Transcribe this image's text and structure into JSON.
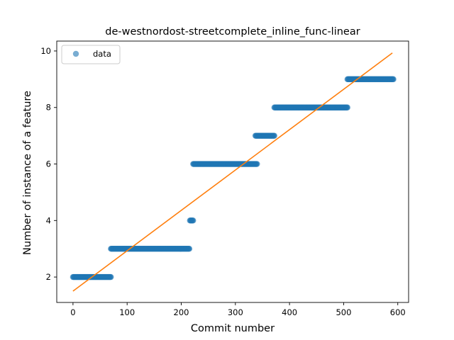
{
  "chart_data": {
    "type": "scatter",
    "title": "de-westnordost-streetcomplete_inline_func-linear",
    "xlabel": "Commit number",
    "ylabel": "Number of instance of a feature",
    "xlim": [
      -30,
      620
    ],
    "ylim": [
      1.1,
      10.35
    ],
    "xticks": [
      0,
      100,
      200,
      300,
      400,
      500,
      600
    ],
    "yticks": [
      2,
      4,
      6,
      8,
      10
    ],
    "legend": {
      "position": "top-left",
      "entries": [
        "data"
      ]
    },
    "grid": false,
    "series": [
      {
        "name": "data",
        "kind": "points",
        "color": "#1f77b4",
        "segments": [
          {
            "x_start": 0,
            "x_end": 70,
            "y": 2
          },
          {
            "x_start": 70,
            "x_end": 215,
            "y": 3
          },
          {
            "x_start": 216,
            "x_end": 222,
            "y": 4
          },
          {
            "x_start": 222,
            "x_end": 340,
            "y": 6
          },
          {
            "x_start": 337,
            "x_end": 372,
            "y": 7
          },
          {
            "x_start": 372,
            "x_end": 507,
            "y": 8
          },
          {
            "x_start": 507,
            "x_end": 592,
            "y": 9
          }
        ]
      },
      {
        "kind": "fit-line",
        "color": "#ff7f0e",
        "x": [
          0,
          590
        ],
        "y": [
          1.5,
          9.93
        ]
      }
    ]
  }
}
